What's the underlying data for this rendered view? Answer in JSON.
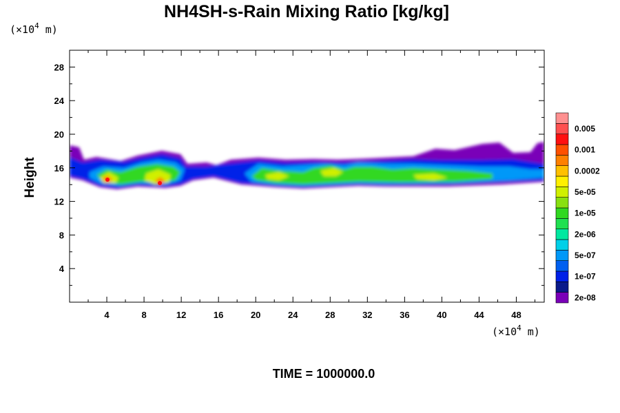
{
  "chart_data": {
    "type": "contour",
    "title": "NH4SH-s-Rain Mixing Ratio [kg/kg]",
    "x_units_base": "(×10",
    "x_units_exp": "4",
    "x_units_end": " m)",
    "y_units_base": "(×10",
    "y_units_exp": "4",
    "y_units_end": " m)",
    "ylabel": "Height",
    "xlabel": "",
    "xlim": [
      0,
      51
    ],
    "ylim": [
      0,
      30
    ],
    "x_ticks": [
      4,
      8,
      12,
      16,
      20,
      24,
      28,
      32,
      36,
      40,
      44,
      48
    ],
    "y_ticks": [
      4,
      8,
      12,
      16,
      20,
      24,
      28
    ],
    "time_label": "TIME = 1000000.0",
    "colorbar": {
      "levels": [
        {
          "color": "#7a00b8",
          "label": "2e-08"
        },
        {
          "color": "#0a1a8a",
          "label": ""
        },
        {
          "color": "#0020e8",
          "label": "1e-07"
        },
        {
          "color": "#0060f0",
          "label": ""
        },
        {
          "color": "#0098f8",
          "label": "5e-07"
        },
        {
          "color": "#00d0e8",
          "label": ""
        },
        {
          "color": "#00e8a0",
          "label": "2e-06"
        },
        {
          "color": "#20e050",
          "label": ""
        },
        {
          "color": "#30d820",
          "label": "1e-05"
        },
        {
          "color": "#88e010",
          "label": ""
        },
        {
          "color": "#d0f000",
          "label": "5e-05"
        },
        {
          "color": "#fff000",
          "label": ""
        },
        {
          "color": "#ffc000",
          "label": "0.0002"
        },
        {
          "color": "#ff8000",
          "label": ""
        },
        {
          "color": "#ff5000",
          "label": "0.001"
        },
        {
          "color": "#ff1010",
          "label": ""
        },
        {
          "color": "#ff5050",
          "label": "0.005"
        },
        {
          "color": "#ff9090",
          "label": ""
        }
      ]
    },
    "cloud_layer": {
      "description_x_range": [
        0,
        51
      ],
      "base_height": 14,
      "top_height": 17,
      "max_cores": [
        {
          "x": 4.3,
          "y": 14.6,
          "level": 14
        },
        {
          "x": 9.7,
          "y": 14.0,
          "level": 14
        },
        {
          "x": 22,
          "y": 14.8,
          "level": 10
        },
        {
          "x": 28,
          "y": 15.2,
          "level": 9
        },
        {
          "x": 39,
          "y": 14.8,
          "level": 9
        }
      ]
    }
  }
}
